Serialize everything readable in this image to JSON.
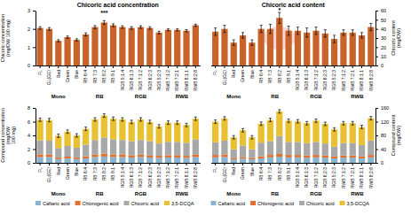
{
  "chart_data": [
    {
      "type": "bar",
      "title": "Chicoric acid concentration",
      "y_label": "Chicoric concentration\n(mg/DW 100 mg)",
      "categories": [
        "FL",
        "GL(GE)",
        "Red",
        "Green",
        "Blue",
        "RB 6:4",
        "RB 7:3",
        "RB 8:2",
        "RB 9:1",
        "RGB 5:1:4",
        "RGB 6:1:3",
        "RGB 7:1:2",
        "RGB 6:2:3",
        "RGB 5:2:3",
        "RWB 7:1:2",
        "RWB 7:2:1",
        "RWB 8:1:1",
        "RWB 8:2:8"
      ],
      "values": [
        2.05,
        2.0,
        1.35,
        1.55,
        1.4,
        1.7,
        2.1,
        2.35,
        2.2,
        2.1,
        2.05,
        2.1,
        2.05,
        1.8,
        1.95,
        1.95,
        1.9,
        2.2
      ],
      "errors": [
        0.07,
        0.07,
        0.06,
        0.06,
        0.06,
        0.08,
        0.08,
        0.1,
        0.08,
        0.07,
        0.07,
        0.07,
        0.07,
        0.07,
        0.06,
        0.06,
        0.06,
        0.06
      ],
      "color": "#C8632A",
      "ylim": [
        0,
        3
      ],
      "yticks": [
        0,
        1,
        2,
        3
      ],
      "groups": [
        {
          "name": "Mono",
          "from": "FL",
          "to": "Blue"
        },
        {
          "name": "RB",
          "from": "RB 6:4",
          "to": "RB 9:1"
        },
        {
          "name": "RGB",
          "from": "RGB 5:1:4",
          "to": "RGB 5:2:3"
        },
        {
          "name": "RWB",
          "from": "RWB 7:1:2",
          "to": "RWB 8:2:8"
        }
      ],
      "annotations": [
        {
          "text": "***",
          "category": "RB 8:2",
          "y": 2.78
        }
      ]
    },
    {
      "type": "bar",
      "title": "Chicoric acid content",
      "y_label": "Chicoric content\n(mg/DW)",
      "categories": [
        "FL",
        "GL(GE)",
        "Red",
        "Green",
        "Blue",
        "RB 6:4",
        "RB 7:3",
        "RB 8:2",
        "RB 9:1",
        "RGB 5:1:4",
        "RGB 6:1:3",
        "RGB 7:1:2",
        "RGB 6:2:3",
        "RGB 5:2:3",
        "RWB 7:1:2",
        "RWB 7:2:1",
        "RWB 8:1:1",
        "RWB 8:2:8"
      ],
      "values": [
        37,
        40,
        25,
        33,
        25,
        40,
        40,
        52,
        38,
        38,
        36,
        38,
        35,
        29,
        36,
        36,
        33,
        42
      ],
      "errors": [
        4,
        4,
        3,
        3,
        3,
        4,
        5,
        6,
        5,
        4,
        5,
        4,
        4,
        4,
        3,
        3,
        3,
        4
      ],
      "color": "#C8632A",
      "ylim": [
        0,
        60
      ],
      "yticks": [
        0,
        10,
        20,
        30,
        40,
        50,
        60
      ],
      "groups": [
        {
          "name": "Mono",
          "from": "FL",
          "to": "Blue"
        },
        {
          "name": "RB",
          "from": "RB 6:4",
          "to": "RB 9:1"
        },
        {
          "name": "RGB",
          "from": "RGB 5:1:4",
          "to": "RGB 5:2:3"
        },
        {
          "name": "RWB",
          "from": "RWB 7:1:2",
          "to": "RWB 8:2:8"
        }
      ],
      "annotations": [
        {
          "text": "*",
          "category": "RB 8:2",
          "y": 58
        }
      ],
      "highlight": {
        "category": "RB 8:2",
        "y_range": [
          17.4,
          42.6
        ],
        "color": "#FFB0B0"
      }
    },
    {
      "type": "bar",
      "stacked": true,
      "y_label": "Compound concentration\n(mg/DW\n100 mg)",
      "categories": [
        "FL",
        "GL(GE)",
        "Red",
        "Green",
        "Blue",
        "RB 6:4",
        "RB 7:3",
        "RB 8:2",
        "RB 9:1",
        "RGB 5:1:4",
        "RGB 6:1:3",
        "RGB 7:1:2",
        "RGB 6:2:3",
        "RGB 5:2:3",
        "RWB 7:1:2",
        "RWB 7:2:1",
        "RWB 8:1:1",
        "RWB 8:2:8"
      ],
      "series": [
        {
          "name": "Caftaric acid",
          "color": "#8AB4D0",
          "values": [
            0.85,
            0.85,
            0.55,
            0.62,
            0.55,
            0.65,
            0.85,
            0.92,
            0.85,
            0.85,
            0.78,
            0.85,
            0.78,
            0.72,
            0.78,
            0.78,
            0.72,
            0.85
          ]
        },
        {
          "name": "Chlorogenic acid",
          "color": "#E07030",
          "values": [
            0.38,
            0.38,
            0.25,
            0.28,
            0.25,
            0.3,
            0.38,
            0.42,
            0.38,
            0.38,
            0.33,
            0.38,
            0.33,
            0.3,
            0.33,
            0.33,
            0.3,
            0.38
          ]
        },
        {
          "name": "Chicoric acid",
          "color": "#A8A8A8",
          "values": [
            2.05,
            2.0,
            1.35,
            1.55,
            1.4,
            1.7,
            2.1,
            2.35,
            2.2,
            2.1,
            2.05,
            2.1,
            2.05,
            1.8,
            1.95,
            1.95,
            1.9,
            2.2
          ]
        },
        {
          "name": "3,5-DCQA",
          "color": "#E8C030",
          "values": [
            3.0,
            3.0,
            1.8,
            2.1,
            1.8,
            2.3,
            3.0,
            3.2,
            3.0,
            3.0,
            2.8,
            3.0,
            2.8,
            2.5,
            2.8,
            2.8,
            2.6,
            3.0
          ]
        }
      ],
      "errors": [
        0.25,
        0.25,
        0.25,
        0.25,
        0.25,
        0.25,
        0.25,
        0.25,
        0.25,
        0.25,
        0.25,
        0.25,
        0.25,
        0.25,
        0.25,
        0.25,
        0.25,
        0.25
      ],
      "ylim": [
        0,
        8
      ],
      "yticks": [
        0,
        2,
        4,
        6,
        8
      ],
      "groups": [
        {
          "name": "Mono",
          "from": "FL",
          "to": "Blue"
        },
        {
          "name": "RB",
          "from": "RB 6:4",
          "to": "RB 9:1"
        },
        {
          "name": "RGB",
          "from": "RGB 5:1:4",
          "to": "RGB 5:2:3"
        },
        {
          "name": "RWB",
          "from": "RWB 7:1:2",
          "to": "RWB 8:2:8"
        }
      ],
      "legend": "bottom"
    },
    {
      "type": "bar",
      "stacked": true,
      "y_label": "Compound content\n(mg/DW)",
      "categories": [
        "FL",
        "GL(GE)",
        "Red",
        "Green",
        "Blue",
        "RB 6:4",
        "RB 7:3",
        "RB 8:2",
        "RB 9:1",
        "RGB 5:1:4",
        "RGB 6:1:3",
        "RGB 7:1:2",
        "RGB 6:2:3",
        "RGB 5:2:3",
        "RWB 7:1:2",
        "RWB 7:2:1",
        "RWB 8:1:1",
        "RWB 8:2:8"
      ],
      "series": [
        {
          "name": "Caftaric acid",
          "color": "#8AB4D0",
          "values": [
            16,
            17,
            10,
            12,
            10,
            13,
            16,
            18,
            16,
            16,
            15,
            16,
            15,
            13,
            15,
            15,
            13,
            16
          ]
        },
        {
          "name": "Chlorogenic acid",
          "color": "#E07030",
          "values": [
            7,
            7.5,
            4.5,
            5,
            4.5,
            6,
            7,
            8,
            7,
            7,
            6.5,
            7,
            6.5,
            5.5,
            6.5,
            6.5,
            5.5,
            7
          ]
        },
        {
          "name": "Chicoric acid",
          "color": "#A8A8A8",
          "values": [
            37,
            40,
            25,
            33,
            25,
            40,
            40,
            52,
            38,
            38,
            36,
            38,
            35,
            29,
            36,
            36,
            33,
            42
          ]
        },
        {
          "name": "3,5-DCQA",
          "color": "#E8C030",
          "values": [
            60,
            65,
            35,
            45,
            35,
            55,
            62,
            72,
            62,
            60,
            58,
            62,
            57,
            50,
            58,
            58,
            53,
            65
          ]
        }
      ],
      "errors": [
        5,
        5,
        5,
        5,
        5,
        5,
        5,
        5,
        5,
        5,
        5,
        5,
        5,
        5,
        5,
        5,
        5,
        5
      ],
      "ylim": [
        0,
        160
      ],
      "yticks": [
        0,
        40,
        80,
        120,
        160
      ],
      "groups": [
        {
          "name": "Mono",
          "from": "FL",
          "to": "Blue"
        },
        {
          "name": "RB",
          "from": "RB 6:4",
          "to": "RB 9:1"
        },
        {
          "name": "RGB",
          "from": "RGB 5:1:4",
          "to": "RGB 5:2:3"
        },
        {
          "name": "RWB",
          "from": "RWB 7:1:2",
          "to": "RWB 8:2:8"
        }
      ],
      "legend": "bottom"
    }
  ]
}
